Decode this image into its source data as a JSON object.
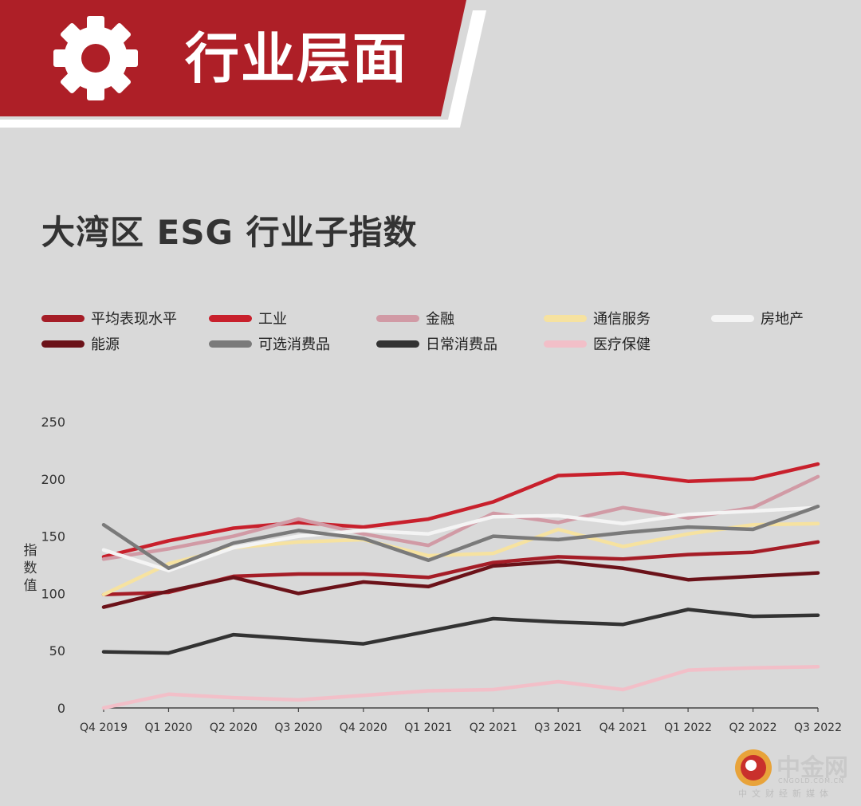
{
  "header": {
    "title": "行业层面",
    "icon": "gear-icon",
    "band_color": "#ae1f27",
    "stripe_color": "#ffffff"
  },
  "watermark": {
    "name": "中金网",
    "site": "CNGOLD.COM.CN",
    "tagline": "中文财经新媒体"
  },
  "chart_data": {
    "type": "line",
    "title": "大湾区 ESG 行业子指数",
    "xlabel": "",
    "ylabel": "指数值",
    "ylim": [
      0,
      250
    ],
    "yticks": [
      0,
      50,
      100,
      150,
      200,
      250
    ],
    "grid": false,
    "legend_position": "top",
    "categories": [
      "Q4 2019",
      "Q1 2020",
      "Q2 2020",
      "Q3 2020",
      "Q4 2020",
      "Q1 2021",
      "Q2 2021",
      "Q3 2021",
      "Q4 2021",
      "Q1 2022",
      "Q2 2022",
      "Q3 2022"
    ],
    "series": [
      {
        "name": "平均表现水平",
        "color": "#a51d27",
        "values": [
          99,
          101,
          115,
          117,
          117,
          114,
          127,
          132,
          130,
          134,
          136,
          145
        ]
      },
      {
        "name": "工业",
        "color": "#c8202c",
        "values": [
          132,
          146,
          157,
          162,
          158,
          165,
          180,
          203,
          205,
          198,
          200,
          213
        ]
      },
      {
        "name": "金融",
        "color": "#d19aa5",
        "values": [
          130,
          139,
          150,
          165,
          152,
          142,
          170,
          162,
          175,
          166,
          175,
          202
        ]
      },
      {
        "name": "通信服务",
        "color": "#f6e2a0",
        "values": [
          99,
          126,
          140,
          145,
          147,
          133,
          135,
          156,
          141,
          152,
          160,
          161
        ]
      },
      {
        "name": "房地产",
        "color": "#f4f4f4",
        "values": [
          138,
          120,
          140,
          150,
          155,
          152,
          167,
          168,
          161,
          169,
          172,
          175
        ]
      },
      {
        "name": "能源",
        "color": "#6b1219",
        "values": [
          88,
          102,
          114,
          100,
          110,
          106,
          124,
          128,
          122,
          112,
          115,
          118
        ]
      },
      {
        "name": "可选消费品",
        "color": "#7a7a7a",
        "values": [
          160,
          122,
          144,
          155,
          148,
          129,
          150,
          147,
          153,
          158,
          156,
          176
        ]
      },
      {
        "name": "日常消费品",
        "color": "#333333",
        "values": [
          49,
          48,
          64,
          60,
          56,
          67,
          78,
          75,
          73,
          86,
          80,
          81
        ]
      },
      {
        "name": "医疗保健",
        "color": "#f2bfc8",
        "values": [
          0,
          12,
          9,
          7,
          11,
          15,
          16,
          23,
          16,
          33,
          35,
          36
        ]
      }
    ]
  }
}
